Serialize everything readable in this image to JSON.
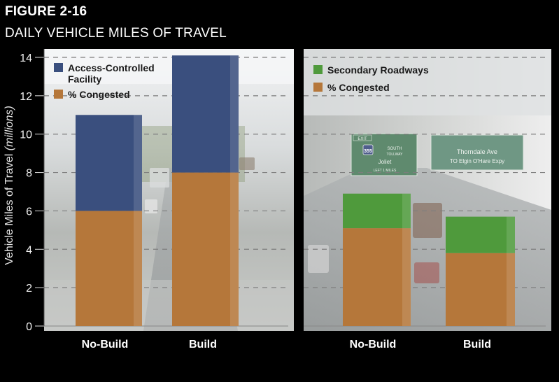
{
  "header": {
    "figure_label": "FIGURE 2-16",
    "title": "DAILY VEHICLE MILES OF TRAVEL"
  },
  "sign_text": {
    "exit": "EXIT",
    "route": "355",
    "south": "SOUTH",
    "tollway": "TOLLWAY",
    "joliet": "Joliet",
    "left_lanes": "LEFT 1 MILES",
    "thorndale": "Thorndale Ave",
    "to_elgin": "TO Elgin O'Hare Expy"
  },
  "colors": {
    "access_controlled": "#3a4f7e",
    "secondary": "#4f9a3c",
    "congested": "#b5773a"
  },
  "chart_data": [
    {
      "type": "bar",
      "stacked": true,
      "ylabel": "Vehicle Miles of Travel (millions)",
      "ylim": [
        0,
        14
      ],
      "yticks": [
        0,
        2,
        4,
        6,
        8,
        10,
        12,
        14
      ],
      "grid": true,
      "legend_position": "top-left",
      "categories": [
        "No-Build",
        "Build"
      ],
      "series": [
        {
          "name": "% Congested",
          "values": [
            6.0,
            8.0
          ]
        },
        {
          "name": "Access-Controlled Facility",
          "values": [
            5.0,
            6.1
          ]
        }
      ]
    },
    {
      "type": "bar",
      "stacked": true,
      "ylim": [
        0,
        14
      ],
      "grid": true,
      "legend_position": "top-left",
      "categories": [
        "No-Build",
        "Build"
      ],
      "series": [
        {
          "name": "% Congested",
          "values": [
            5.1,
            3.8
          ]
        },
        {
          "name": "Secondary Roadways",
          "values": [
            1.8,
            1.9
          ]
        }
      ]
    }
  ]
}
